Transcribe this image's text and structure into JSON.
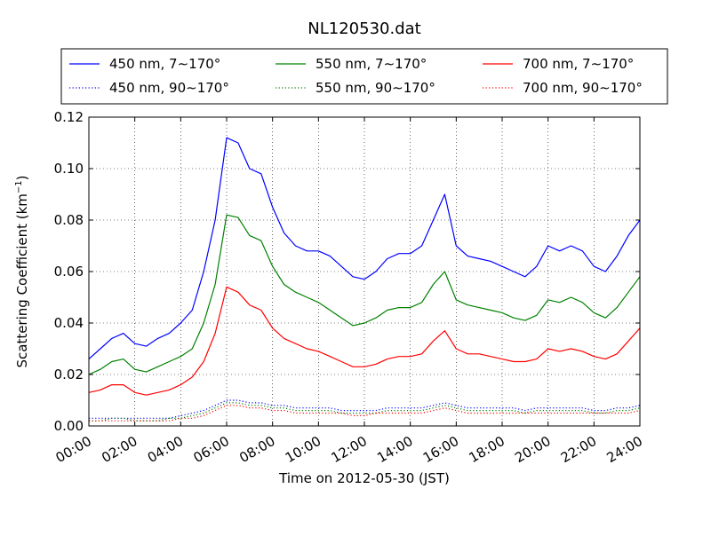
{
  "chart_data": {
    "type": "line",
    "title": "NL120530.dat",
    "xlabel": "Time on 2012-05-30 (JST)",
    "ylabel": "Scattering Coefficient (km",
    "ylabel_exp": "−1",
    "ylabel_end": ")",
    "xlim": [
      0,
      24
    ],
    "ylim": [
      0,
      0.12
    ],
    "x_ticks": [
      {
        "value": 0,
        "label": "00:00"
      },
      {
        "value": 2,
        "label": "02:00"
      },
      {
        "value": 4,
        "label": "04:00"
      },
      {
        "value": 6,
        "label": "06:00"
      },
      {
        "value": 8,
        "label": "08:00"
      },
      {
        "value": 10,
        "label": "10:00"
      },
      {
        "value": 12,
        "label": "12:00"
      },
      {
        "value": 14,
        "label": "14:00"
      },
      {
        "value": 16,
        "label": "16:00"
      },
      {
        "value": 18,
        "label": "18:00"
      },
      {
        "value": 20,
        "label": "20:00"
      },
      {
        "value": 22,
        "label": "22:00"
      },
      {
        "value": 24,
        "label": "24:00"
      }
    ],
    "y_ticks": [
      {
        "value": 0,
        "label": "0.00"
      },
      {
        "value": 0.02,
        "label": "0.02"
      },
      {
        "value": 0.04,
        "label": "0.04"
      },
      {
        "value": 0.06,
        "label": "0.06"
      },
      {
        "value": 0.08,
        "label": "0.08"
      },
      {
        "value": 0.1,
        "label": "0.10"
      },
      {
        "value": 0.12,
        "label": "0.12"
      }
    ],
    "grid": true,
    "legend_position": "top, above plot",
    "x": [
      0,
      0.5,
      1,
      1.5,
      2,
      2.5,
      3,
      3.5,
      4,
      4.5,
      5,
      5.5,
      6,
      6.5,
      7,
      7.5,
      8,
      8.5,
      9,
      9.5,
      10,
      10.5,
      11,
      11.5,
      12,
      12.5,
      13,
      13.5,
      14,
      14.5,
      15,
      15.5,
      16,
      16.5,
      17,
      17.5,
      18,
      18.5,
      19,
      19.5,
      20,
      20.5,
      21,
      21.5,
      22,
      22.5,
      23,
      23.5,
      24
    ],
    "series": [
      {
        "name": "450 nm, 7∼170°",
        "color": "#0000ff",
        "style": "solid",
        "values": [
          0.026,
          0.03,
          0.034,
          0.036,
          0.032,
          0.031,
          0.034,
          0.036,
          0.04,
          0.045,
          0.06,
          0.08,
          0.112,
          0.11,
          0.1,
          0.098,
          0.085,
          0.075,
          0.07,
          0.068,
          0.068,
          0.066,
          0.062,
          0.058,
          0.057,
          0.06,
          0.065,
          0.067,
          0.067,
          0.07,
          0.08,
          0.09,
          0.07,
          0.066,
          0.065,
          0.064,
          0.062,
          0.06,
          0.058,
          0.062,
          0.07,
          0.068,
          0.07,
          0.068,
          0.062,
          0.06,
          0.066,
          0.074,
          0.08
        ]
      },
      {
        "name": "550 nm, 7∼170°",
        "color": "#008000",
        "style": "solid",
        "values": [
          0.02,
          0.022,
          0.025,
          0.026,
          0.022,
          0.021,
          0.023,
          0.025,
          0.027,
          0.03,
          0.04,
          0.055,
          0.082,
          0.081,
          0.074,
          0.072,
          0.062,
          0.055,
          0.052,
          0.05,
          0.048,
          0.045,
          0.042,
          0.039,
          0.04,
          0.042,
          0.045,
          0.046,
          0.046,
          0.048,
          0.055,
          0.06,
          0.049,
          0.047,
          0.046,
          0.045,
          0.044,
          0.042,
          0.041,
          0.043,
          0.049,
          0.048,
          0.05,
          0.048,
          0.044,
          0.042,
          0.046,
          0.052,
          0.058
        ]
      },
      {
        "name": "700 nm, 7∼170°",
        "color": "#ff0000",
        "style": "solid",
        "values": [
          0.013,
          0.014,
          0.016,
          0.016,
          0.013,
          0.012,
          0.013,
          0.014,
          0.016,
          0.019,
          0.025,
          0.036,
          0.054,
          0.052,
          0.047,
          0.045,
          0.038,
          0.034,
          0.032,
          0.03,
          0.029,
          0.027,
          0.025,
          0.023,
          0.023,
          0.024,
          0.026,
          0.027,
          0.027,
          0.028,
          0.033,
          0.037,
          0.03,
          0.028,
          0.028,
          0.027,
          0.026,
          0.025,
          0.025,
          0.026,
          0.03,
          0.029,
          0.03,
          0.029,
          0.027,
          0.026,
          0.028,
          0.033,
          0.038
        ]
      },
      {
        "name": "450 nm, 90∼170°",
        "color": "#0000ff",
        "style": "dotted",
        "values": [
          0.003,
          0.003,
          0.003,
          0.003,
          0.003,
          0.003,
          0.003,
          0.003,
          0.004,
          0.005,
          0.006,
          0.008,
          0.01,
          0.01,
          0.009,
          0.009,
          0.008,
          0.008,
          0.007,
          0.007,
          0.007,
          0.007,
          0.006,
          0.006,
          0.006,
          0.006,
          0.007,
          0.007,
          0.007,
          0.007,
          0.008,
          0.009,
          0.008,
          0.007,
          0.007,
          0.007,
          0.007,
          0.007,
          0.006,
          0.007,
          0.007,
          0.007,
          0.007,
          0.007,
          0.006,
          0.006,
          0.007,
          0.007,
          0.008
        ]
      },
      {
        "name": "550 nm, 90∼170°",
        "color": "#008000",
        "style": "dotted",
        "values": [
          0.002,
          0.002,
          0.003,
          0.003,
          0.002,
          0.002,
          0.002,
          0.003,
          0.003,
          0.004,
          0.005,
          0.007,
          0.009,
          0.009,
          0.008,
          0.008,
          0.007,
          0.007,
          0.006,
          0.006,
          0.006,
          0.006,
          0.005,
          0.005,
          0.005,
          0.005,
          0.006,
          0.006,
          0.006,
          0.006,
          0.007,
          0.008,
          0.007,
          0.006,
          0.006,
          0.006,
          0.006,
          0.006,
          0.005,
          0.006,
          0.006,
          0.006,
          0.006,
          0.006,
          0.005,
          0.005,
          0.006,
          0.006,
          0.007
        ]
      },
      {
        "name": "700 nm, 90∼170°",
        "color": "#ff0000",
        "style": "dotted",
        "values": [
          0.002,
          0.002,
          0.002,
          0.002,
          0.002,
          0.002,
          0.002,
          0.002,
          0.003,
          0.003,
          0.004,
          0.006,
          0.008,
          0.008,
          0.007,
          0.007,
          0.006,
          0.006,
          0.005,
          0.005,
          0.005,
          0.005,
          0.005,
          0.004,
          0.004,
          0.005,
          0.005,
          0.005,
          0.005,
          0.005,
          0.006,
          0.007,
          0.006,
          0.005,
          0.005,
          0.005,
          0.005,
          0.005,
          0.005,
          0.005,
          0.005,
          0.005,
          0.005,
          0.005,
          0.005,
          0.005,
          0.005,
          0.005,
          0.006
        ]
      }
    ]
  }
}
